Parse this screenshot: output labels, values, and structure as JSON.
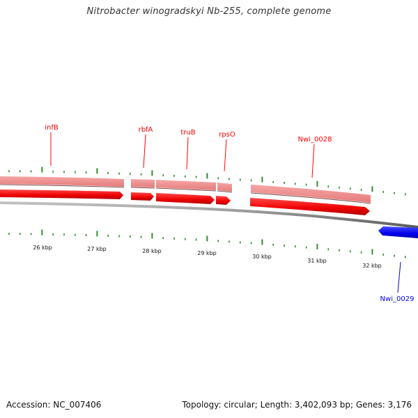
{
  "title": "Nitrobacter winogradskyi Nb-255, complete genome",
  "footer": {
    "accession": "Accession: NC_007406",
    "stats": "Topology: circular; Length: 3,402,093 bp; Genes: 3,176"
  },
  "colors": {
    "forward_gene": "#ff0000",
    "forward_gene_light": "#f08080",
    "reverse_gene": "#0000ee",
    "tick": "#2e8b2e",
    "backbone": "#808080"
  },
  "scale": {
    "unit": "kbp",
    "labels": [
      "26 kbp",
      "27 kbp",
      "28 kbp",
      "29 kbp",
      "30 kbp",
      "31 kbp",
      "32 kbp"
    ]
  },
  "genes": [
    {
      "label": "infB",
      "strand": "+"
    },
    {
      "label": "rbfA",
      "strand": "+"
    },
    {
      "label": "truB",
      "strand": "+"
    },
    {
      "label": "rpsO",
      "strand": "+"
    },
    {
      "label": "Nwi_0028",
      "strand": "+"
    },
    {
      "label": "Nwi_0029",
      "strand": "-"
    }
  ]
}
